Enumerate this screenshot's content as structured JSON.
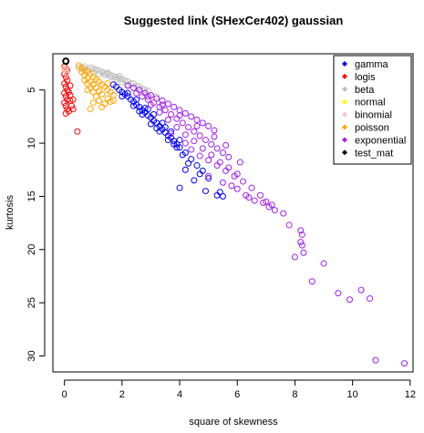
{
  "chart_data": {
    "type": "scatter",
    "title": "Suggested link (SHexCer402) gaussian",
    "xlabel": "square of skewness",
    "ylabel": "kurtosis",
    "xlim": [
      -0.4,
      12.1
    ],
    "ylim": [
      31.5,
      1.6
    ],
    "y_reversed": true,
    "xticks": [
      "0",
      "2",
      "4",
      "6",
      "8",
      "10",
      "12"
    ],
    "yticks": [
      "5",
      "10",
      "15",
      "20",
      "25",
      "30"
    ],
    "legend_position": "top-right",
    "legend": [
      {
        "name": "gamma",
        "color": "#0000ff"
      },
      {
        "name": "logis",
        "color": "#ff0000"
      },
      {
        "name": "beta",
        "color": "#bebebe"
      },
      {
        "name": "normal",
        "color": "#ffff00"
      },
      {
        "name": "binomial",
        "color": "#ffc0cb"
      },
      {
        "name": "poisson",
        "color": "#ffa500"
      },
      {
        "name": "exponential",
        "color": "#a020f0"
      },
      {
        "name": "test_mat",
        "color": "#000000"
      }
    ],
    "series": [
      {
        "name": "beta",
        "color": "#bebebe",
        "points": [
          [
            0.6,
            3.0
          ],
          [
            0.8,
            3.1
          ],
          [
            1.0,
            3.3
          ],
          [
            1.2,
            3.5
          ],
          [
            1.4,
            3.6
          ],
          [
            1.6,
            3.8
          ],
          [
            1.8,
            4.0
          ],
          [
            2.0,
            4.3
          ],
          [
            2.2,
            4.5
          ],
          [
            2.4,
            4.8
          ],
          [
            2.6,
            5.0
          ],
          [
            2.8,
            5.3
          ],
          [
            3.0,
            5.5
          ],
          [
            0.9,
            2.9
          ],
          [
            1.1,
            3.1
          ],
          [
            1.3,
            3.3
          ],
          [
            1.5,
            3.5
          ],
          [
            1.7,
            3.7
          ],
          [
            1.9,
            3.9
          ],
          [
            2.1,
            4.1
          ],
          [
            2.3,
            4.4
          ],
          [
            2.5,
            4.6
          ],
          [
            2.7,
            4.9
          ],
          [
            0.7,
            2.8
          ],
          [
            1.0,
            3.0
          ],
          [
            1.4,
            3.4
          ],
          [
            1.8,
            3.8
          ],
          [
            2.2,
            4.2
          ],
          [
            2.6,
            4.7
          ],
          [
            1.2,
            3.2
          ],
          [
            1.6,
            3.6
          ],
          [
            2.0,
            4.0
          ],
          [
            2.4,
            4.4
          ],
          [
            2.9,
            5.1
          ],
          [
            3.2,
            5.6
          ],
          [
            1.5,
            3.4
          ],
          [
            2.8,
            5.0
          ],
          [
            0.5,
            2.9
          ],
          [
            1.9,
            3.7
          ]
        ]
      },
      {
        "name": "gamma",
        "color": "#0000ff",
        "points": [
          [
            1.7,
            4.5
          ],
          [
            1.8,
            4.7
          ],
          [
            1.9,
            5.0
          ],
          [
            2.0,
            5.2
          ],
          [
            2.1,
            5.4
          ],
          [
            2.2,
            5.6
          ],
          [
            2.3,
            5.9
          ],
          [
            2.4,
            6.1
          ],
          [
            2.5,
            6.4
          ],
          [
            2.6,
            6.6
          ],
          [
            2.7,
            6.9
          ],
          [
            2.8,
            7.1
          ],
          [
            2.9,
            7.4
          ],
          [
            3.0,
            7.6
          ],
          [
            3.1,
            7.9
          ],
          [
            3.2,
            8.1
          ],
          [
            3.3,
            8.4
          ],
          [
            3.4,
            8.7
          ],
          [
            3.5,
            9.0
          ],
          [
            3.6,
            9.3
          ],
          [
            3.7,
            9.5
          ],
          [
            3.8,
            9.8
          ],
          [
            3.9,
            10.1
          ],
          [
            4.0,
            10.4
          ],
          [
            4.2,
            10.9
          ],
          [
            4.4,
            11.5
          ],
          [
            4.6,
            12.1
          ],
          [
            4.8,
            12.6
          ],
          [
            5.0,
            13.3
          ],
          [
            2.2,
            5.3
          ],
          [
            2.5,
            5.9
          ],
          [
            2.8,
            6.7
          ],
          [
            3.1,
            7.3
          ],
          [
            3.4,
            8.1
          ],
          [
            3.7,
            8.9
          ],
          [
            4.0,
            9.7
          ],
          [
            2.0,
            5.6
          ],
          [
            2.4,
            6.5
          ],
          [
            2.7,
            7.3
          ],
          [
            3.0,
            8.2
          ],
          [
            3.3,
            8.9
          ],
          [
            3.6,
            9.7
          ],
          [
            3.9,
            10.4
          ],
          [
            4.1,
            11.1
          ],
          [
            4.3,
            11.9
          ],
          [
            4.7,
            12.9
          ],
          [
            5.4,
            14.6
          ],
          [
            4.0,
            14.2
          ],
          [
            4.5,
            13.5
          ],
          [
            4.9,
            14.5
          ],
          [
            5.3,
            14.9
          ],
          [
            5.5,
            15.0
          ],
          [
            4.2,
            12.5
          ],
          [
            2.6,
            7.0
          ],
          [
            3.2,
            8.6
          ],
          [
            3.8,
            10.1
          ],
          [
            2.9,
            6.8
          ],
          [
            3.5,
            8.5
          ]
        ]
      },
      {
        "name": "logis",
        "color": "#ff0000",
        "points": [
          [
            0.0,
            2.8
          ],
          [
            0.05,
            3.0
          ],
          [
            0.1,
            3.2
          ],
          [
            0.0,
            3.5
          ],
          [
            0.05,
            3.8
          ],
          [
            0.1,
            4.1
          ],
          [
            0.0,
            4.4
          ],
          [
            0.05,
            4.7
          ],
          [
            0.1,
            5.0
          ],
          [
            0.0,
            5.3
          ],
          [
            0.05,
            5.6
          ],
          [
            0.1,
            5.9
          ],
          [
            0.0,
            6.2
          ],
          [
            0.05,
            6.5
          ],
          [
            0.1,
            6.8
          ],
          [
            0.2,
            5.5
          ],
          [
            0.2,
            6.0
          ],
          [
            0.25,
            6.5
          ],
          [
            0.15,
            7.0
          ],
          [
            0.3,
            6.8
          ],
          [
            0.15,
            5.2
          ],
          [
            0.2,
            4.6
          ],
          [
            0.3,
            5.9
          ],
          [
            0.05,
            7.2
          ],
          [
            0.45,
            8.9
          ]
        ]
      },
      {
        "name": "poisson",
        "color": "#ffa500",
        "points": [
          [
            0.5,
            2.7
          ],
          [
            0.6,
            2.9
          ],
          [
            0.7,
            3.1
          ],
          [
            0.8,
            3.3
          ],
          [
            0.9,
            3.5
          ],
          [
            1.0,
            3.8
          ],
          [
            1.1,
            4.0
          ],
          [
            1.2,
            4.2
          ],
          [
            1.3,
            4.5
          ],
          [
            1.4,
            4.7
          ],
          [
            1.5,
            5.0
          ],
          [
            1.6,
            5.2
          ],
          [
            1.7,
            5.5
          ],
          [
            0.6,
            3.3
          ],
          [
            0.7,
            3.6
          ],
          [
            0.8,
            3.9
          ],
          [
            0.9,
            4.2
          ],
          [
            1.0,
            4.5
          ],
          [
            1.1,
            4.8
          ],
          [
            1.2,
            5.1
          ],
          [
            1.3,
            5.4
          ],
          [
            0.8,
            4.4
          ],
          [
            0.9,
            4.8
          ],
          [
            1.0,
            5.2
          ],
          [
            1.1,
            5.6
          ],
          [
            1.2,
            6.0
          ],
          [
            1.5,
            5.8
          ],
          [
            1.6,
            6.1
          ],
          [
            0.7,
            4.1
          ],
          [
            1.7,
            6.0
          ],
          [
            0.8,
            5.0
          ],
          [
            1.0,
            6.2
          ],
          [
            0.9,
            6.8
          ],
          [
            1.3,
            6.6
          ],
          [
            1.4,
            6.3
          ],
          [
            1.5,
            4.4
          ]
        ]
      },
      {
        "name": "normal",
        "color": "#ffff00",
        "points": [
          [
            0.0,
            3.0
          ]
        ]
      },
      {
        "name": "binomial",
        "color": "#ffc0cb",
        "points": [
          [
            0.02,
            3.0
          ],
          [
            0.05,
            3.1
          ],
          [
            0.08,
            3.3
          ]
        ]
      },
      {
        "name": "exponential",
        "color": "#a020f0",
        "points": [
          [
            2.2,
            4.6
          ],
          [
            2.4,
            4.8
          ],
          [
            2.6,
            5.0
          ],
          [
            2.8,
            5.3
          ],
          [
            3.0,
            5.5
          ],
          [
            3.2,
            5.8
          ],
          [
            3.4,
            6.0
          ],
          [
            3.6,
            6.3
          ],
          [
            3.8,
            6.6
          ],
          [
            4.0,
            6.9
          ],
          [
            4.2,
            7.2
          ],
          [
            4.4,
            7.5
          ],
          [
            4.6,
            7.8
          ],
          [
            4.8,
            8.1
          ],
          [
            5.0,
            8.4
          ],
          [
            5.2,
            8.8
          ],
          [
            2.5,
            5.3
          ],
          [
            2.7,
            5.6
          ],
          [
            2.9,
            5.9
          ],
          [
            3.1,
            6.2
          ],
          [
            3.3,
            6.6
          ],
          [
            3.5,
            6.9
          ],
          [
            3.7,
            7.3
          ],
          [
            3.9,
            7.7
          ],
          [
            4.1,
            8.1
          ],
          [
            4.3,
            8.5
          ],
          [
            4.5,
            8.9
          ],
          [
            4.7,
            9.3
          ],
          [
            4.9,
            9.7
          ],
          [
            5.1,
            10.1
          ],
          [
            5.3,
            10.5
          ],
          [
            5.5,
            10.9
          ],
          [
            5.7,
            11.3
          ],
          [
            3.0,
            6.4
          ],
          [
            3.3,
            7.1
          ],
          [
            3.6,
            7.8
          ],
          [
            3.9,
            8.5
          ],
          [
            4.2,
            9.2
          ],
          [
            4.5,
            9.8
          ],
          [
            4.8,
            10.5
          ],
          [
            5.1,
            11.1
          ],
          [
            5.4,
            11.8
          ],
          [
            5.7,
            12.3
          ],
          [
            6.0,
            12.9
          ],
          [
            2.9,
            5.6
          ],
          [
            3.4,
            6.4
          ],
          [
            4.0,
            7.4
          ],
          [
            4.6,
            8.4
          ],
          [
            5.2,
            9.4
          ],
          [
            5.6,
            10.2
          ],
          [
            5.0,
            11.6
          ],
          [
            5.3,
            12.1
          ],
          [
            5.6,
            12.6
          ],
          [
            5.9,
            13.1
          ],
          [
            6.2,
            13.6
          ],
          [
            6.5,
            14.2
          ],
          [
            6.8,
            14.9
          ],
          [
            7.0,
            15.5
          ],
          [
            7.1,
            16.0
          ],
          [
            7.3,
            16.3
          ],
          [
            5.0,
            13.1
          ],
          [
            5.5,
            13.7
          ],
          [
            6.0,
            14.3
          ],
          [
            6.3,
            14.9
          ],
          [
            6.6,
            15.4
          ],
          [
            6.9,
            15.6
          ],
          [
            5.8,
            14.0
          ],
          [
            6.1,
            11.8
          ],
          [
            4.4,
            10.6
          ],
          [
            4.7,
            11.2
          ],
          [
            3.7,
            9.1
          ],
          [
            4.2,
            10.0
          ],
          [
            7.2,
            15.8
          ],
          [
            6.4,
            15.1
          ],
          [
            7.6,
            16.6
          ],
          [
            7.8,
            17.7
          ],
          [
            8.2,
            18.2
          ],
          [
            8.25,
            18.6
          ],
          [
            8.2,
            19.3
          ],
          [
            8.25,
            19.6
          ],
          [
            8.3,
            20.3
          ],
          [
            8.0,
            20.7
          ],
          [
            9.0,
            21.3
          ],
          [
            8.6,
            23.0
          ],
          [
            9.5,
            24.1
          ],
          [
            9.9,
            24.7
          ],
          [
            10.3,
            23.8
          ],
          [
            10.6,
            24.6
          ],
          [
            10.8,
            30.4
          ],
          [
            11.8,
            30.7
          ]
        ]
      },
      {
        "name": "test_mat",
        "color": "#000000",
        "points": [
          [
            0.05,
            2.3
          ]
        ]
      }
    ]
  }
}
